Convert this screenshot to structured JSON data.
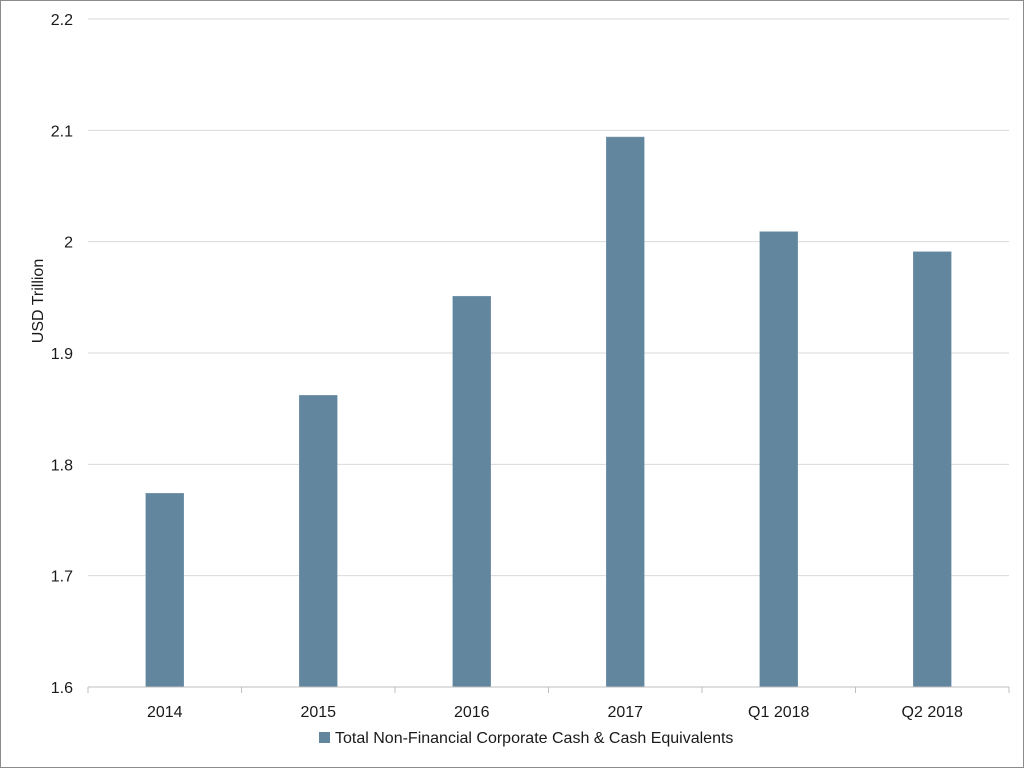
{
  "chart_data": {
    "type": "bar",
    "categories": [
      "2014",
      "2015",
      "2016",
      "2017",
      "Q1 2018",
      "Q2 2018"
    ],
    "series": [
      {
        "name": "Total Non-Financial Corporate Cash & Cash Equivalents",
        "values": [
          1.774,
          1.862,
          1.951,
          2.094,
          2.009,
          1.991
        ]
      }
    ],
    "ylabel": "USD Trillion",
    "xlabel": "",
    "ylim": [
      1.6,
      2.2
    ],
    "yticks": [
      "1.6",
      "1.7",
      "1.8",
      "1.9",
      "2",
      "2.1",
      "2.2"
    ],
    "grid": true,
    "legend_position": "bottom",
    "colors": {
      "bar": "#62869e",
      "grid": "#d9d9d9",
      "axis": "#bfbfbf"
    }
  }
}
